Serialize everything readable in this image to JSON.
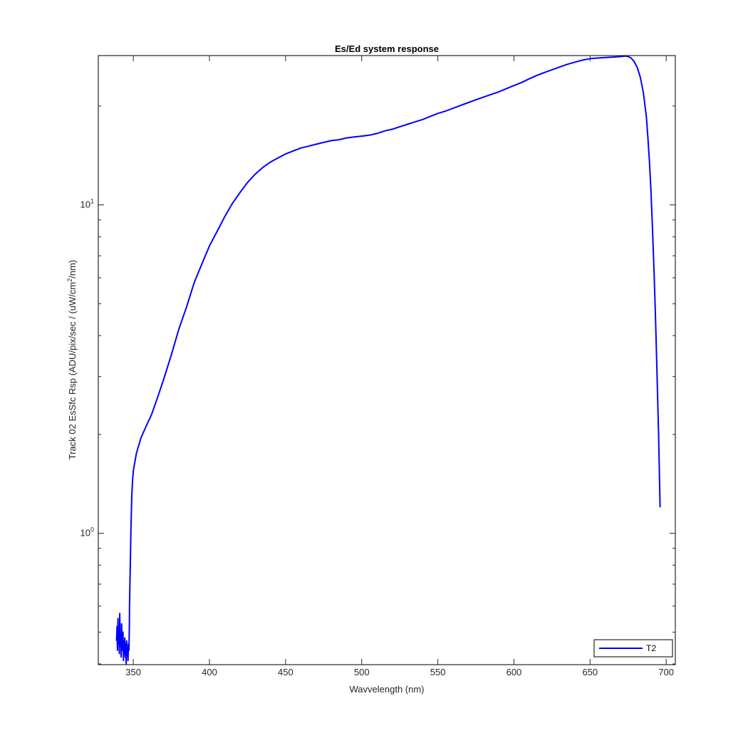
{
  "chart_data": {
    "type": "line",
    "title": "Es/Ed system response",
    "xlabel": "Wavvelength (nm)",
    "ylabel": {
      "before": "Track 02 EsSfc Rsp (ADU/pix/sec / (uW/cm",
      "sup": "2",
      "after": "/nm)"
    },
    "xlim": [
      327,
      706
    ],
    "ylim": [
      0.398,
      28.5
    ],
    "yscale": "log",
    "grid": false,
    "legend_position": "bottom-right",
    "x_ticks": [
      350,
      400,
      450,
      500,
      550,
      600,
      650,
      700
    ],
    "x_tick_labels": [
      "350",
      "400",
      "450",
      "500",
      "550",
      "600",
      "650",
      "700"
    ],
    "y_major_ticks": [
      1,
      10
    ],
    "y_tick_labels": [
      {
        "value": 1,
        "base": "10",
        "exp": "0"
      },
      {
        "value": 10,
        "base": "10",
        "exp": "1"
      }
    ],
    "y_minor_ticks": [
      0.4,
      0.5,
      0.6,
      0.7,
      0.8,
      0.9,
      2,
      3,
      4,
      5,
      6,
      7,
      8,
      9,
      20
    ],
    "series": [
      {
        "name": "T2",
        "color": "#0000ff",
        "noise_x": [
          339.0,
          339.3,
          339.6,
          339.9,
          340.2,
          340.5,
          340.8,
          341.1,
          341.4,
          341.7,
          342.0,
          342.3,
          342.6,
          342.9,
          343.2,
          343.5,
          343.8,
          344.1,
          344.4,
          344.7,
          345.0,
          345.3,
          345.6,
          345.9,
          346.2,
          346.5,
          346.8,
          347.1,
          347.4
        ],
        "noise_y": [
          0.47,
          0.52,
          0.44,
          0.55,
          0.46,
          0.5,
          0.43,
          0.57,
          0.45,
          0.49,
          0.42,
          0.53,
          0.46,
          0.44,
          0.5,
          0.41,
          0.47,
          0.43,
          0.48,
          0.42,
          0.46,
          0.4,
          0.47,
          0.43,
          0.45,
          0.41,
          0.46,
          0.44,
          0.52
        ],
        "x": [
          347.5,
          348,
          348.5,
          349,
          349.5,
          350,
          352,
          355,
          358,
          362,
          366,
          370,
          375,
          380,
          385,
          390,
          395,
          400,
          405,
          410,
          415,
          420,
          425,
          430,
          435,
          440,
          445,
          450,
          455,
          460,
          465,
          470,
          475,
          480,
          485,
          490,
          495,
          500,
          505,
          510,
          515,
          520,
          525,
          530,
          535,
          540,
          545,
          550,
          555,
          560,
          565,
          570,
          575,
          580,
          585,
          590,
          595,
          600,
          605,
          610,
          615,
          620,
          625,
          630,
          635,
          640,
          645,
          650,
          655,
          660,
          665,
          670,
          673,
          675,
          677,
          679,
          681,
          683,
          685,
          687,
          688,
          689,
          690,
          691,
          692,
          693,
          694,
          695,
          696
        ],
        "y": [
          0.6,
          0.8,
          1.05,
          1.3,
          1.45,
          1.55,
          1.75,
          1.95,
          2.1,
          2.3,
          2.6,
          2.95,
          3.5,
          4.2,
          4.9,
          5.8,
          6.6,
          7.5,
          8.3,
          9.2,
          10.1,
          10.9,
          11.7,
          12.4,
          13.0,
          13.5,
          13.9,
          14.3,
          14.6,
          14.9,
          15.1,
          15.3,
          15.5,
          15.7,
          15.8,
          16.0,
          16.1,
          16.2,
          16.3,
          16.5,
          16.8,
          17.0,
          17.3,
          17.6,
          17.9,
          18.2,
          18.6,
          19.0,
          19.3,
          19.7,
          20.1,
          20.5,
          20.9,
          21.3,
          21.7,
          22.1,
          22.6,
          23.1,
          23.6,
          24.2,
          24.8,
          25.3,
          25.8,
          26.3,
          26.8,
          27.2,
          27.6,
          27.9,
          28.0,
          28.1,
          28.2,
          28.3,
          28.4,
          28.3,
          28.0,
          27.3,
          26.2,
          24.5,
          22.0,
          18.5,
          16.0,
          13.5,
          11.0,
          8.5,
          6.3,
          4.5,
          3.0,
          2.0,
          1.2
        ]
      }
    ]
  }
}
